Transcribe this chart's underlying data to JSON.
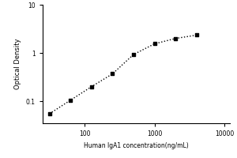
{
  "title": "",
  "xlabel": "Human IgA1 concentration(ng/mL)",
  "ylabel": "Optical Density",
  "x_data": [
    31.25,
    62.5,
    125,
    250,
    500,
    1000,
    2000,
    4000
  ],
  "y_data": [
    0.055,
    0.105,
    0.2,
    0.37,
    0.93,
    1.55,
    2.0,
    2.35
  ],
  "xlim": [
    25,
    12000
  ],
  "ylim": [
    0.035,
    10
  ],
  "marker": "s",
  "marker_color": "black",
  "marker_size": 3.5,
  "line_style": ":",
  "line_color": "black",
  "line_width": 1.0,
  "background_color": "#ffffff",
  "x_ticks": [
    100,
    1000,
    10000
  ],
  "y_ticks": [
    0.1,
    1,
    10
  ],
  "xlabel_fontsize": 5.5,
  "ylabel_fontsize": 6.0,
  "tick_fontsize": 5.5
}
